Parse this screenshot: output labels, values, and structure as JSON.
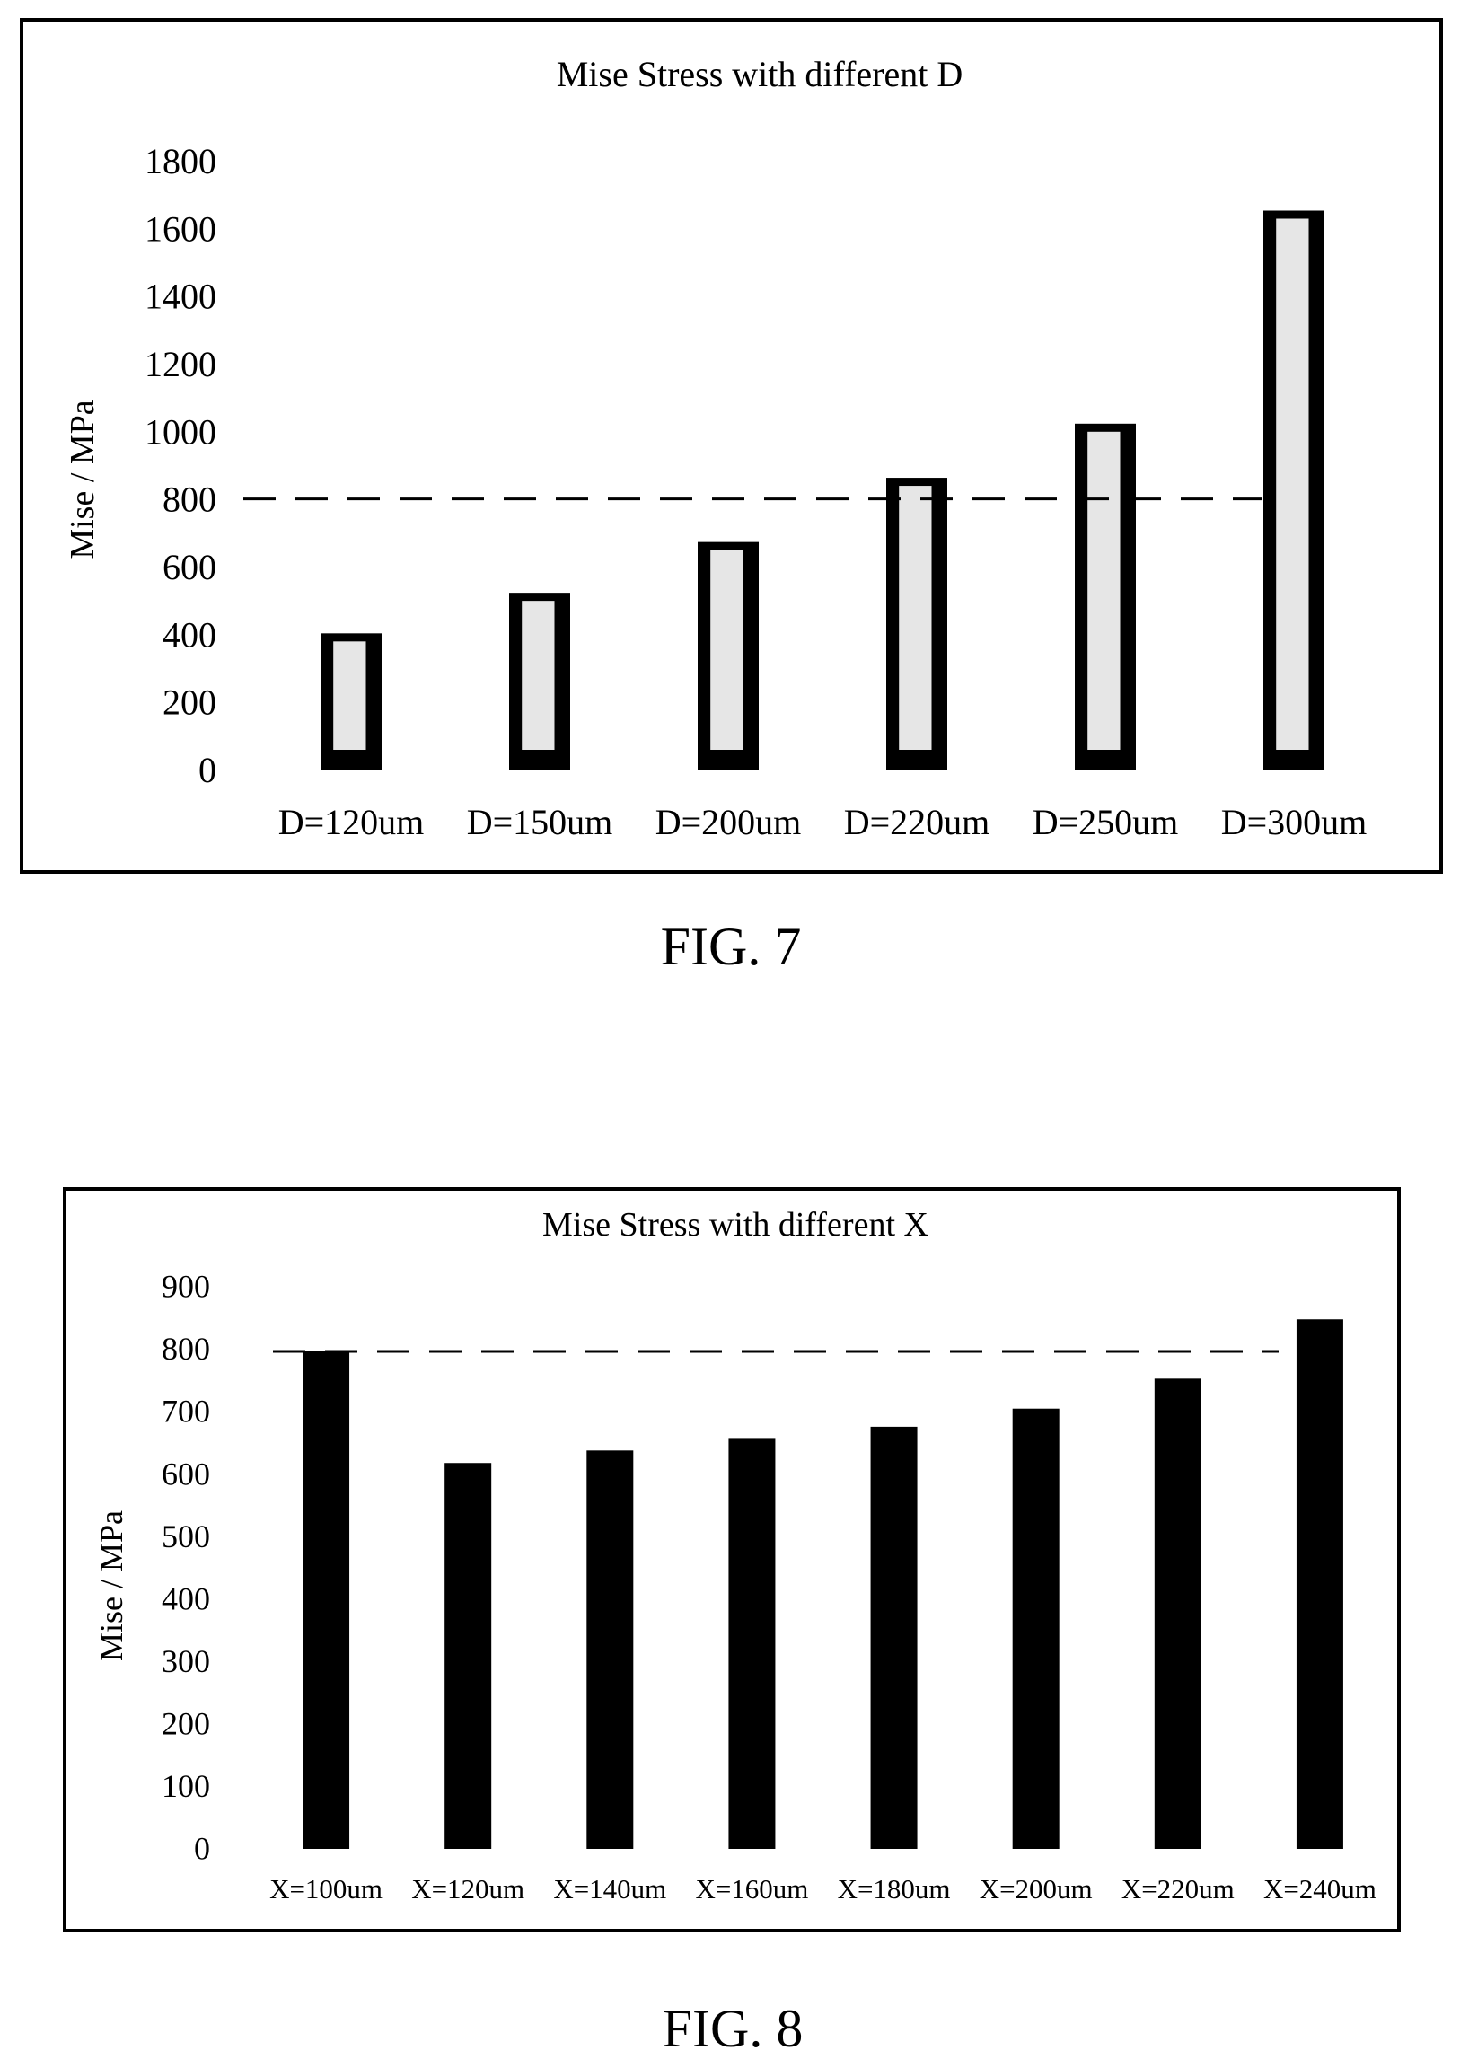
{
  "figures": [
    {
      "caption": "FIG. 7",
      "chart_data": {
        "type": "bar",
        "title": "Mise Stress with different D",
        "ylabel": "Mise / MPa",
        "xlabel": "",
        "categories": [
          "D=120um",
          "D=150um",
          "D=200um",
          "D=220um",
          "D=250um",
          "D=300um"
        ],
        "values": [
          400,
          520,
          670,
          860,
          1020,
          1650
        ],
        "ylim": [
          0,
          1800
        ],
        "yticks": [
          "0",
          "200",
          "400",
          "600",
          "800",
          "1000",
          "1200",
          "1400",
          "1600",
          "1800"
        ],
        "reference_line": 800,
        "grid": false,
        "legend": "none"
      }
    },
    {
      "caption": "FIG. 8",
      "chart_data": {
        "type": "bar",
        "title": "Mise Stress with different X",
        "ylabel": "Mise / MPa",
        "xlabel": "",
        "categories": [
          "X=100um",
          "X=120um",
          "X=140um",
          "X=160um",
          "X=180um",
          "X=200um",
          "X=220um",
          "X=240um"
        ],
        "values": [
          795,
          615,
          635,
          655,
          673,
          702,
          750,
          845
        ],
        "ylim": [
          0,
          900
        ],
        "yticks": [
          "0",
          "100",
          "200",
          "300",
          "400",
          "500",
          "600",
          "700",
          "800",
          "900"
        ],
        "reference_line": 795,
        "grid": false,
        "legend": "none"
      }
    }
  ],
  "colors": {
    "bar": "#000000",
    "bar_highlight": "#e6e6e6",
    "frame": "#000000"
  }
}
